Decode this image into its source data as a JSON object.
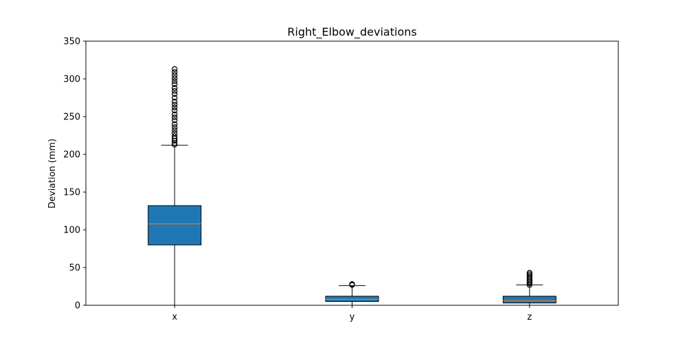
{
  "chart_data": {
    "type": "box",
    "title": "Right_Elbow_deviations",
    "xlabel": "",
    "ylabel": "Deviation (mm)",
    "ylim": [
      0,
      350
    ],
    "yticks": [
      0,
      50,
      100,
      150,
      200,
      250,
      300,
      350
    ],
    "grid": false,
    "box_color": "#1f77b4",
    "median_color": "#ff7f0e",
    "categories": [
      "x",
      "y",
      "z"
    ],
    "boxes": [
      {
        "label": "x",
        "whisker_low": 0,
        "q1": 80,
        "median": 108,
        "q3": 132,
        "whisker_high": 212,
        "outliers": [
          213,
          215,
          218,
          221,
          224,
          228,
          232,
          236,
          240,
          245,
          249,
          253,
          258,
          262,
          266,
          270,
          275,
          280,
          284,
          288,
          293,
          297,
          301,
          305,
          309,
          313
        ]
      },
      {
        "label": "y",
        "whisker_low": 0,
        "q1": 5,
        "median": 8,
        "q3": 12,
        "whisker_high": 26,
        "outliers": [
          27,
          28
        ]
      },
      {
        "label": "z",
        "whisker_low": 0,
        "q1": 3,
        "median": 6,
        "q3": 12,
        "whisker_high": 27,
        "outliers": [
          27,
          29,
          31,
          33,
          35,
          37,
          39,
          41,
          43
        ]
      }
    ]
  }
}
